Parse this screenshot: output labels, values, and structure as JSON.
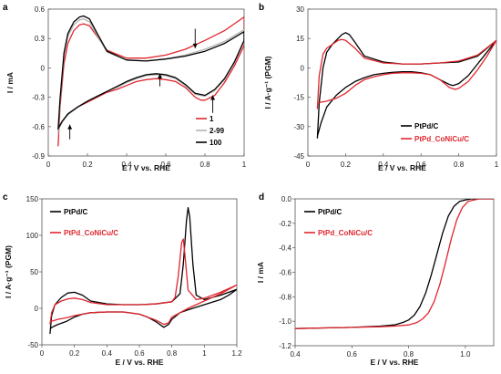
{
  "chart_data": [
    {
      "panel": "a",
      "type": "line",
      "xlabel": "E / V vs. RHE",
      "ylabel": "I / mA",
      "xlim": [
        0,
        1
      ],
      "ylim": [
        -0.9,
        0.6
      ],
      "xticks": [
        "0",
        "0.2",
        "0.4",
        "0.6",
        "0.8",
        "1"
      ],
      "yticks": [
        "-0.9",
        "-0.6",
        "-0.3",
        "0",
        "0.3",
        "0.6"
      ],
      "legend_position": "bottom-right",
      "arrows": [
        {
          "x": 0.11,
          "from": -0.73,
          "to": -0.58
        },
        {
          "x": 0.57,
          "from": -0.19,
          "to": -0.06
        },
        {
          "x": 0.75,
          "from": 0.4,
          "to": 0.2
        },
        {
          "x": 0.84,
          "from": -0.46,
          "to": -0.28
        }
      ],
      "series": [
        {
          "name": "1",
          "color": "#e0262d",
          "x": [
            0.05,
            0.06,
            0.08,
            0.1,
            0.13,
            0.16,
            0.18,
            0.21,
            0.25,
            0.3,
            0.4,
            0.5,
            0.6,
            0.7,
            0.8,
            0.9,
            1.0,
            1.0,
            0.95,
            0.9,
            0.85,
            0.8,
            0.78,
            0.75,
            0.7,
            0.65,
            0.6,
            0.55,
            0.5,
            0.45,
            0.4,
            0.35,
            0.3,
            0.25,
            0.2,
            0.15,
            0.1,
            0.07,
            0.05
          ],
          "y": [
            -0.8,
            -0.4,
            0.04,
            0.25,
            0.38,
            0.44,
            0.45,
            0.43,
            0.32,
            0.18,
            0.1,
            0.1,
            0.13,
            0.19,
            0.28,
            0.38,
            0.52,
            0.23,
            0.02,
            -0.15,
            -0.28,
            -0.33,
            -0.33,
            -0.3,
            -0.2,
            -0.14,
            -0.12,
            -0.11,
            -0.12,
            -0.14,
            -0.18,
            -0.22,
            -0.25,
            -0.3,
            -0.35,
            -0.4,
            -0.48,
            -0.55,
            -0.62
          ]
        },
        {
          "name": "2-99",
          "color": "#b3b3b3",
          "x": [
            0.05,
            0.06,
            0.08,
            0.1,
            0.13,
            0.16,
            0.18,
            0.21,
            0.25,
            0.3,
            0.4,
            0.5,
            0.6,
            0.7,
            0.8,
            0.9,
            1.0,
            1.0,
            0.95,
            0.9,
            0.85,
            0.8,
            0.75,
            0.7,
            0.65,
            0.6,
            0.55,
            0.5,
            0.45,
            0.4,
            0.35,
            0.3,
            0.25,
            0.2,
            0.15,
            0.1,
            0.07,
            0.05
          ],
          "y": [
            -0.68,
            -0.35,
            0.12,
            0.32,
            0.44,
            0.49,
            0.5,
            0.47,
            0.33,
            0.16,
            0.08,
            0.07,
            0.09,
            0.13,
            0.19,
            0.27,
            0.39,
            0.27,
            0.05,
            -0.12,
            -0.23,
            -0.29,
            -0.27,
            -0.18,
            -0.11,
            -0.08,
            -0.07,
            -0.08,
            -0.11,
            -0.15,
            -0.2,
            -0.24,
            -0.29,
            -0.34,
            -0.4,
            -0.48,
            -0.56,
            -0.64
          ]
        },
        {
          "name": "100",
          "color": "#000000",
          "x": [
            0.05,
            0.06,
            0.08,
            0.1,
            0.13,
            0.16,
            0.18,
            0.21,
            0.25,
            0.3,
            0.4,
            0.5,
            0.6,
            0.7,
            0.8,
            0.9,
            1.0,
            1.0,
            0.95,
            0.9,
            0.85,
            0.8,
            0.75,
            0.7,
            0.65,
            0.6,
            0.55,
            0.5,
            0.45,
            0.4,
            0.35,
            0.3,
            0.25,
            0.2,
            0.15,
            0.1,
            0.07,
            0.05
          ],
          "y": [
            -0.63,
            -0.32,
            0.15,
            0.35,
            0.47,
            0.52,
            0.53,
            0.5,
            0.35,
            0.17,
            0.08,
            0.07,
            0.09,
            0.12,
            0.17,
            0.25,
            0.37,
            0.28,
            0.06,
            -0.11,
            -0.22,
            -0.28,
            -0.26,
            -0.17,
            -0.1,
            -0.07,
            -0.06,
            -0.07,
            -0.1,
            -0.14,
            -0.19,
            -0.24,
            -0.29,
            -0.34,
            -0.4,
            -0.47,
            -0.55,
            -0.62
          ]
        }
      ]
    },
    {
      "panel": "b",
      "type": "line",
      "xlabel": "E / V vs. RHE",
      "ylabel": "I / A·g⁻¹ (PGM)",
      "xlim": [
        0,
        1
      ],
      "ylim": [
        -45,
        30
      ],
      "xticks": [
        "0",
        "0.2",
        "0.4",
        "0.6",
        "0.8",
        "1"
      ],
      "yticks": [
        "-45",
        "-30",
        "-15",
        "0",
        "15",
        "30"
      ],
      "legend_position": "bottom-right",
      "series": [
        {
          "name": "PtPd/C",
          "color": "#000000",
          "x": [
            0.05,
            0.06,
            0.08,
            0.1,
            0.13,
            0.16,
            0.18,
            0.2,
            0.22,
            0.25,
            0.3,
            0.4,
            0.5,
            0.6,
            0.7,
            0.8,
            0.9,
            1.0,
            1.0,
            0.95,
            0.9,
            0.85,
            0.8,
            0.77,
            0.75,
            0.7,
            0.65,
            0.6,
            0.55,
            0.5,
            0.45,
            0.4,
            0.35,
            0.3,
            0.25,
            0.2,
            0.15,
            0.1,
            0.07,
            0.05
          ],
          "y": [
            -36,
            -18,
            0,
            8,
            12,
            15,
            17,
            18,
            17,
            13,
            6,
            3,
            2,
            2,
            2.5,
            3,
            6,
            14,
            14,
            8,
            2,
            -4,
            -8,
            -9,
            -8.5,
            -6,
            -3.5,
            -2.5,
            -2,
            -2,
            -2.3,
            -2.8,
            -3.5,
            -5,
            -7,
            -10,
            -14,
            -20,
            -28,
            -35
          ]
        },
        {
          "name": "PtPd_CoNiCu/C",
          "color": "#e0262d",
          "x": [
            0.05,
            0.06,
            0.08,
            0.1,
            0.13,
            0.16,
            0.18,
            0.2,
            0.22,
            0.25,
            0.3,
            0.4,
            0.5,
            0.6,
            0.7,
            0.8,
            0.9,
            1.0,
            1.0,
            0.95,
            0.9,
            0.85,
            0.8,
            0.78,
            0.75,
            0.7,
            0.65,
            0.6,
            0.55,
            0.5,
            0.45,
            0.4,
            0.35,
            0.3,
            0.25,
            0.2,
            0.15,
            0.1,
            0.07,
            0.05
          ],
          "y": [
            -21,
            -4,
            7,
            10,
            12,
            14,
            14.5,
            14,
            12.5,
            10,
            5,
            2.5,
            2,
            2,
            2.5,
            3.5,
            6.5,
            14,
            14,
            6,
            -1,
            -7,
            -10.5,
            -11,
            -10,
            -6,
            -3.5,
            -2.8,
            -2.5,
            -2.5,
            -2.8,
            -3.5,
            -4.5,
            -6,
            -9,
            -13,
            -15.5,
            -17,
            -17.5,
            -18
          ]
        }
      ]
    },
    {
      "panel": "c",
      "type": "line",
      "xlabel": "E / V vs. RHE",
      "ylabel": "I / A·g⁻¹ (PGM)",
      "xlim": [
        0,
        1.2
      ],
      "ylim": [
        -50,
        150
      ],
      "xticks": [
        "0",
        "0.2",
        "0.4",
        "0.6",
        "0.8",
        "1",
        "1.2"
      ],
      "yticks": [
        "-50",
        "0",
        "50",
        "100",
        "150"
      ],
      "legend_position": "top-left",
      "series": [
        {
          "name": "PtPd/C",
          "color": "#000000",
          "x": [
            0.05,
            0.06,
            0.08,
            0.12,
            0.16,
            0.2,
            0.25,
            0.3,
            0.4,
            0.5,
            0.6,
            0.7,
            0.8,
            0.85,
            0.87,
            0.89,
            0.9,
            0.91,
            0.93,
            0.95,
            1.0,
            1.1,
            1.2,
            1.2,
            1.15,
            1.1,
            1.0,
            0.9,
            0.85,
            0.8,
            0.78,
            0.75,
            0.7,
            0.65,
            0.6,
            0.5,
            0.4,
            0.3,
            0.25,
            0.2,
            0.15,
            0.1,
            0.07,
            0.05
          ],
          "y": [
            -35,
            -10,
            5,
            15,
            21,
            22,
            18,
            10,
            6,
            5,
            5,
            6,
            9,
            20,
            60,
            120,
            138,
            125,
            60,
            18,
            12,
            18,
            26,
            26,
            18,
            12,
            5,
            -2,
            -6,
            -15,
            -22,
            -26,
            -18,
            -12,
            -8,
            -5,
            -5,
            -6,
            -8,
            -12,
            -18,
            -22,
            -25,
            -28
          ]
        },
        {
          "name": "PtPd_CoNiCu/C",
          "color": "#e0262d",
          "x": [
            0.05,
            0.06,
            0.08,
            0.12,
            0.16,
            0.2,
            0.25,
            0.3,
            0.4,
            0.5,
            0.6,
            0.7,
            0.8,
            0.82,
            0.84,
            0.86,
            0.87,
            0.88,
            0.9,
            0.95,
            1.0,
            1.1,
            1.2,
            1.2,
            1.1,
            1.0,
            0.9,
            0.85,
            0.8,
            0.78,
            0.75,
            0.7,
            0.65,
            0.6,
            0.5,
            0.4,
            0.3,
            0.25,
            0.2,
            0.15,
            0.1,
            0.07,
            0.05
          ],
          "y": [
            -22,
            -6,
            5,
            10,
            13,
            14,
            12,
            8,
            5,
            5,
            5,
            6,
            9,
            15,
            45,
            90,
            95,
            75,
            25,
            12,
            14,
            22,
            32,
            32,
            20,
            10,
            0,
            -6,
            -12,
            -20,
            -22,
            -16,
            -12,
            -8,
            -5,
            -5,
            -6,
            -8,
            -10,
            -13,
            -15,
            -17,
            -18
          ]
        }
      ]
    },
    {
      "panel": "d",
      "type": "line",
      "xlabel": "E / V vs. RHE",
      "ylabel": "I / mA",
      "xlim": [
        0.4,
        1.1
      ],
      "ylim": [
        -1.2,
        0.0
      ],
      "xticks": [
        "0.4",
        "0.6",
        "0.8",
        "1.0"
      ],
      "yticks": [
        "-1.2",
        "-1.0",
        "-0.8",
        "-0.6",
        "-0.4",
        "-0.2",
        "0.0"
      ],
      "legend_position": "top-left",
      "series": [
        {
          "name": "PtPd/C",
          "color": "#000000",
          "x": [
            0.4,
            0.5,
            0.6,
            0.7,
            0.75,
            0.78,
            0.8,
            0.82,
            0.84,
            0.86,
            0.88,
            0.9,
            0.92,
            0.94,
            0.96,
            0.98,
            1.0,
            1.02,
            1.05,
            1.1
          ],
          "y": [
            -1.06,
            -1.055,
            -1.05,
            -1.04,
            -1.03,
            -1.01,
            -0.99,
            -0.95,
            -0.88,
            -0.77,
            -0.62,
            -0.45,
            -0.28,
            -0.14,
            -0.06,
            -0.02,
            -0.01,
            0.0,
            0.0,
            0.0
          ]
        },
        {
          "name": "PtPd_CoNiCu/C",
          "color": "#e0262d",
          "x": [
            0.4,
            0.5,
            0.6,
            0.7,
            0.75,
            0.8,
            0.83,
            0.85,
            0.87,
            0.89,
            0.91,
            0.93,
            0.95,
            0.97,
            0.99,
            1.01,
            1.03,
            1.05,
            1.1
          ],
          "y": [
            -1.06,
            -1.055,
            -1.05,
            -1.045,
            -1.04,
            -1.03,
            -1.01,
            -0.98,
            -0.93,
            -0.84,
            -0.7,
            -0.52,
            -0.33,
            -0.17,
            -0.07,
            -0.02,
            -0.01,
            0.0,
            0.0
          ]
        }
      ]
    }
  ]
}
